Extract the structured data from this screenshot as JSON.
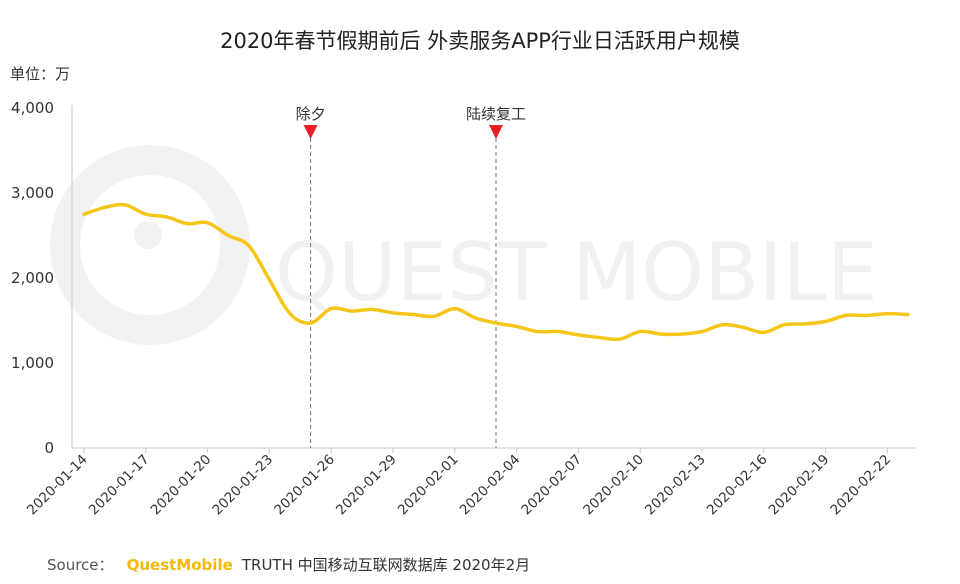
{
  "chart_data": {
    "type": "line",
    "title": "2020年春节假期前后 外卖服务APP行业日活跃用户规模",
    "unit_label": "单位：万",
    "ylim": [
      0,
      4000
    ],
    "yticks": [
      "0",
      "1,000",
      "2,000",
      "3,000",
      "4,000"
    ],
    "ytick_values": [
      0,
      1000,
      2000,
      3000,
      4000
    ],
    "grid": false,
    "line_color": "#F5C518",
    "x": [
      "2020-01-14",
      "2020-01-15",
      "2020-01-16",
      "2020-01-17",
      "2020-01-18",
      "2020-01-19",
      "2020-01-20",
      "2020-01-21",
      "2020-01-22",
      "2020-01-23",
      "2020-01-24",
      "2020-01-25",
      "2020-01-26",
      "2020-01-27",
      "2020-01-28",
      "2020-01-29",
      "2020-01-30",
      "2020-01-31",
      "2020-02-01",
      "2020-02-02",
      "2020-02-03",
      "2020-02-04",
      "2020-02-05",
      "2020-02-06",
      "2020-02-07",
      "2020-02-08",
      "2020-02-09",
      "2020-02-10",
      "2020-02-11",
      "2020-02-12",
      "2020-02-13",
      "2020-02-14",
      "2020-02-15",
      "2020-02-16",
      "2020-02-17",
      "2020-02-18",
      "2020-02-19",
      "2020-02-20",
      "2020-02-21",
      "2020-02-22",
      "2020-02-23"
    ],
    "xtick_labels": [
      "2020-01-14",
      "2020-01-17",
      "2020-01-20",
      "2020-01-23",
      "2020-01-26",
      "2020-01-29",
      "2020-02-01",
      "2020-02-04",
      "2020-02-07",
      "2020-02-10",
      "2020-02-13",
      "2020-02-16",
      "2020-02-19",
      "2020-02-22"
    ],
    "series": [
      {
        "values": [
          2750,
          2830,
          2860,
          2750,
          2720,
          2640,
          2650,
          2500,
          2380,
          1980,
          1580,
          1470,
          1640,
          1610,
          1630,
          1590,
          1570,
          1550,
          1640,
          1530,
          1470,
          1430,
          1370,
          1370,
          1330,
          1300,
          1280,
          1370,
          1340,
          1340,
          1370,
          1450,
          1420,
          1360,
          1450,
          1460,
          1490,
          1560,
          1560,
          1580,
          1570
        ]
      }
    ],
    "annotations": [
      {
        "label": "除夕",
        "x": "2020-01-25"
      },
      {
        "label": "陆续复工",
        "x": "2020-02-03"
      }
    ],
    "marker_color": "#E8202A"
  },
  "watermark": "QUEST MOBILE",
  "source": {
    "label": "Source：",
    "brand": "QuestMobile",
    "rest": "TRUTH 中国移动互联网数据库 2020年2月"
  }
}
